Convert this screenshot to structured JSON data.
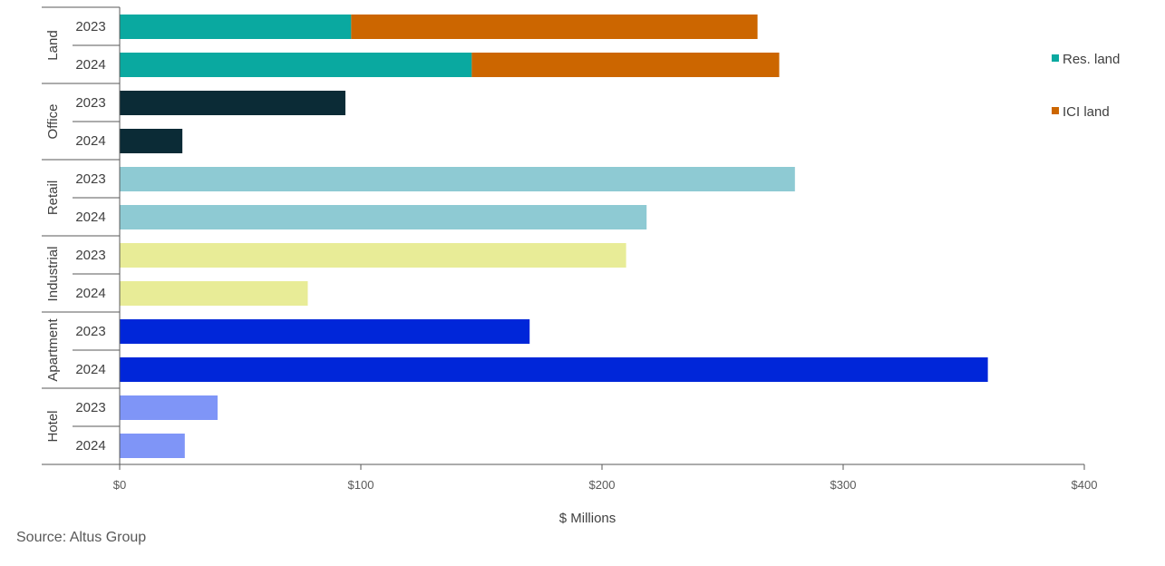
{
  "chart_data": {
    "type": "bar",
    "orientation": "horizontal",
    "stacked": true,
    "groups": [
      "Land",
      "Office",
      "Retail",
      "Industrial",
      "Apartment",
      "Hotel"
    ],
    "categories": [
      "2023",
      "2024"
    ],
    "rows": [
      {
        "group": "Land",
        "year": "2023",
        "segments": [
          {
            "series": "Res. land",
            "value": 96
          },
          {
            "series": "ICI land",
            "value": 168.5
          }
        ]
      },
      {
        "group": "Land",
        "year": "2024",
        "segments": [
          {
            "series": "Res. land",
            "value": 146
          },
          {
            "series": "ICI land",
            "value": 127.5
          }
        ]
      },
      {
        "group": "Office",
        "year": "2023",
        "segments": [
          {
            "value": 93.6
          }
        ]
      },
      {
        "group": "Office",
        "year": "2024",
        "segments": [
          {
            "value": 26
          }
        ]
      },
      {
        "group": "Retail",
        "year": "2023",
        "segments": [
          {
            "value": 280
          }
        ]
      },
      {
        "group": "Retail",
        "year": "2024",
        "segments": [
          {
            "value": 218.5
          }
        ]
      },
      {
        "group": "Industrial",
        "year": "2023",
        "segments": [
          {
            "value": 210
          }
        ]
      },
      {
        "group": "Industrial",
        "year": "2024",
        "segments": [
          {
            "value": 78
          }
        ]
      },
      {
        "group": "Apartment",
        "year": "2023",
        "segments": [
          {
            "value": 170
          }
        ]
      },
      {
        "group": "Apartment",
        "year": "2024",
        "segments": [
          {
            "value": 360
          }
        ]
      },
      {
        "group": "Hotel",
        "year": "2023",
        "segments": [
          {
            "value": 40.6
          }
        ]
      },
      {
        "group": "Hotel",
        "year": "2024",
        "segments": [
          {
            "value": 27
          }
        ]
      }
    ],
    "colors": {
      "Res. land": "#0aa9a0",
      "ICI land": "#cc6600",
      "Office": "#0b2b36",
      "Retail": "#8ecad3",
      "Industrial": "#e8ec97",
      "Apartment": "#0026d9",
      "Hotel": "#7f95f7"
    },
    "legend": [
      "Res. land",
      "ICI land"
    ],
    "legend_position": "right",
    "xlabel": "$ Millions",
    "xlim": [
      0,
      400
    ],
    "xticks": [
      0,
      100,
      200,
      300,
      400
    ],
    "xtick_labels": [
      "$0",
      "$100",
      "$200",
      "$300",
      "$400"
    ],
    "grid": false
  },
  "source": "Source:  Altus Group"
}
